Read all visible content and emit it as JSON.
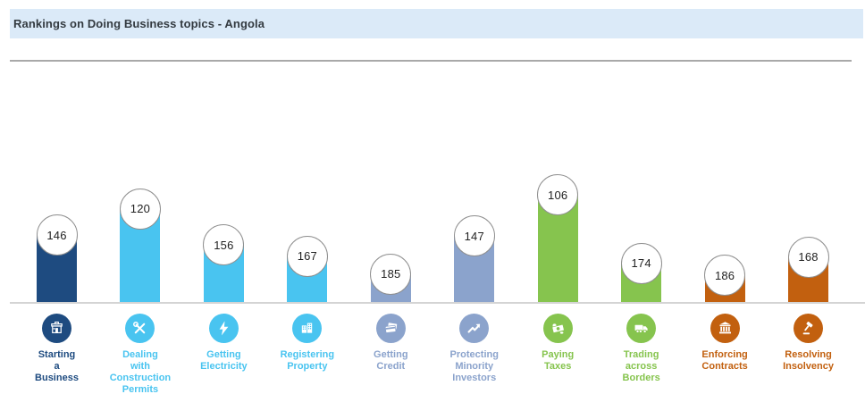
{
  "header": {
    "title": "Rankings on Doing Business topics - Angola"
  },
  "colors": {
    "dark_blue": "#1e4b80",
    "cyan": "#49c4f0",
    "slate": "#8ba3cc",
    "green": "#86c44e",
    "orange": "#c2600f",
    "band_bg": "#dbeaf8",
    "title_text": "#333a40",
    "separator": "#a9a9a9",
    "baseline": "#d4d4d4",
    "rank_circle_border": "#8f8f8f",
    "rank_text": "#222222"
  },
  "chart_data": {
    "type": "bar",
    "title": "Rankings on Doing Business topics - Angola",
    "categories": [
      "Starting a Business",
      "Dealing with Construction Permits",
      "Getting Electricity",
      "Registering Property",
      "Getting Credit",
      "Protecting Minority Investors",
      "Paying Taxes",
      "Trading across Borders",
      "Enforcing Contracts",
      "Resolving Insolvency"
    ],
    "values": [
      146,
      120,
      156,
      167,
      185,
      147,
      106,
      174,
      186,
      168
    ],
    "value_label_style": "rank shown in white circle at top of each bar",
    "bar_height_rule": "lower rank number = taller bar",
    "legend": "none",
    "grid": "off",
    "xlabel": "",
    "ylabel": ""
  },
  "topics": [
    {
      "lines": [
        "Starting",
        "a",
        "Business"
      ],
      "rank": 146,
      "group": "dark_blue",
      "icon": "storefront-icon"
    },
    {
      "lines": [
        "Dealing",
        "with",
        "Construction",
        "Permits"
      ],
      "rank": 120,
      "group": "cyan",
      "icon": "tools-icon"
    },
    {
      "lines": [
        "Getting",
        "Electricity"
      ],
      "rank": 156,
      "group": "cyan",
      "icon": "lightning-icon"
    },
    {
      "lines": [
        "Registering",
        "Property"
      ],
      "rank": 167,
      "group": "cyan",
      "icon": "buildings-icon"
    },
    {
      "lines": [
        "Getting",
        "Credit"
      ],
      "rank": 185,
      "group": "slate",
      "icon": "credit-cards-icon"
    },
    {
      "lines": [
        "Protecting",
        "Minority",
        "Investors"
      ],
      "rank": 147,
      "group": "slate",
      "icon": "trend-arrow-icon"
    },
    {
      "lines": [
        "Paying",
        "Taxes"
      ],
      "rank": 106,
      "group": "green",
      "icon": "money-icon"
    },
    {
      "lines": [
        "Trading",
        "across",
        "Borders"
      ],
      "rank": 174,
      "group": "green",
      "icon": "truck-icon"
    },
    {
      "lines": [
        "Enforcing",
        "Contracts"
      ],
      "rank": 186,
      "group": "orange",
      "icon": "courthouse-icon"
    },
    {
      "lines": [
        "Resolving",
        "Insolvency"
      ],
      "rank": 168,
      "group": "orange",
      "icon": "gavel-icon"
    }
  ]
}
